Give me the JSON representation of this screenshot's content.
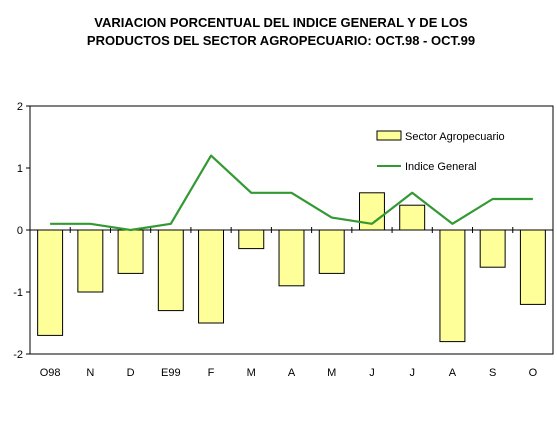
{
  "chart_data": {
    "type": "bar",
    "title_line1": "VARIACION PORCENTUAL DEL INDICE GENERAL Y DE LOS",
    "title_line2": "PRODUCTOS DEL SECTOR AGROPECUARIO: OCT.98 - OCT.99",
    "xlabel": "",
    "ylabel": "",
    "categories": [
      "O98",
      "N",
      "D",
      "E99",
      "F",
      "M",
      "A",
      "M",
      "J",
      "J",
      "A",
      "S",
      "O"
    ],
    "ylim": [
      -2,
      2
    ],
    "yticks": [
      "2",
      "1",
      "0",
      "-1",
      "-2"
    ],
    "grid": false,
    "legend_position": "top-right",
    "series": [
      {
        "name": "Sector Agropecuario",
        "type": "bar",
        "color": "#ffff99",
        "values": [
          -1.7,
          -1.0,
          -0.7,
          -1.3,
          -1.5,
          -0.3,
          -0.9,
          -0.7,
          0.6,
          0.4,
          -1.8,
          -0.6,
          -1.2
        ]
      },
      {
        "name": "Indice General",
        "type": "line",
        "color": "#339933",
        "values": [
          0.1,
          0.1,
          0.0,
          0.1,
          1.2,
          0.6,
          0.6,
          0.2,
          0.1,
          0.6,
          0.1,
          0.5,
          0.5
        ]
      }
    ]
  }
}
